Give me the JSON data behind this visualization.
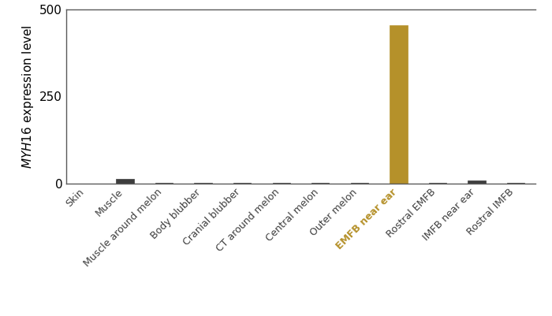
{
  "categories": [
    "Skin",
    "Muscle",
    "Muscle around melon",
    "Body blubber",
    "Cranial blubber",
    "CT around melon",
    "Central melon",
    "Outer melon",
    "EMFB near ear",
    "Rostral EMFB",
    "IMFB near ear",
    "Rostral IMFB"
  ],
  "values": [
    0,
    12,
    2,
    1,
    1,
    1,
    1,
    1,
    455,
    2,
    8,
    1
  ],
  "bar_colors": [
    "#3d3d3d",
    "#3d3d3d",
    "#3d3d3d",
    "#3d3d3d",
    "#3d3d3d",
    "#3d3d3d",
    "#3d3d3d",
    "#3d3d3d",
    "#b5912a",
    "#3d3d3d",
    "#3d3d3d",
    "#3d3d3d"
  ],
  "highlight_index": 8,
  "highlight_color": "#b5912a",
  "default_color": "#3d3d3d",
  "ylabel": "MYH16 expression level",
  "ylim": [
    0,
    500
  ],
  "yticks": [
    0,
    250,
    500
  ],
  "figsize": [
    7.0,
    4.01
  ],
  "dpi": 100,
  "bar_width": 0.45,
  "spine_color": "#5a5a5a",
  "background_color": "#ffffff",
  "tick_label_fontsize": 9,
  "ylabel_fontsize": 11,
  "ytick_fontsize": 11
}
